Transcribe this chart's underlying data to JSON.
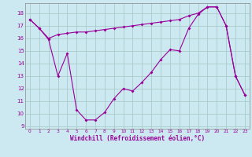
{
  "xlabel": "Windchill (Refroidissement éolien,°C)",
  "bg_color": "#cce8f0",
  "line_color": "#990099",
  "grid_color": "#aacccc",
  "xlim": [
    -0.5,
    23.5
  ],
  "ylim": [
    8.8,
    18.8
  ],
  "yticks": [
    9,
    10,
    11,
    12,
    13,
    14,
    15,
    16,
    17,
    18
  ],
  "xticks": [
    0,
    1,
    2,
    3,
    4,
    5,
    6,
    7,
    8,
    9,
    10,
    11,
    12,
    13,
    14,
    15,
    16,
    17,
    18,
    19,
    20,
    21,
    22,
    23
  ],
  "line1_x": [
    0,
    1,
    2,
    3,
    4,
    5,
    6,
    7,
    8,
    9,
    10,
    11,
    12,
    13,
    14,
    15,
    16,
    17,
    18,
    19,
    20,
    21,
    22,
    23
  ],
  "line1_y": [
    17.5,
    16.8,
    16.0,
    16.3,
    16.4,
    16.5,
    16.5,
    16.6,
    16.7,
    16.8,
    16.9,
    17.0,
    17.1,
    17.2,
    17.3,
    17.4,
    17.5,
    17.8,
    18.0,
    18.5,
    18.5,
    17.0,
    13.0,
    11.5
  ],
  "line2_x": [
    0,
    1,
    2,
    3,
    4,
    5,
    6,
    7,
    8,
    9,
    10,
    11,
    12,
    13,
    14,
    15,
    16,
    17,
    18,
    19,
    20,
    21,
    22,
    23
  ],
  "line2_y": [
    17.5,
    16.8,
    15.9,
    13.0,
    14.8,
    10.3,
    9.5,
    9.5,
    10.1,
    11.2,
    12.0,
    11.8,
    12.5,
    13.3,
    14.3,
    15.1,
    15.0,
    16.8,
    17.9,
    18.5,
    18.5,
    17.0,
    13.0,
    11.5
  ],
  "xlabel_fontsize": 5.5,
  "tick_fontsize": 4.5
}
